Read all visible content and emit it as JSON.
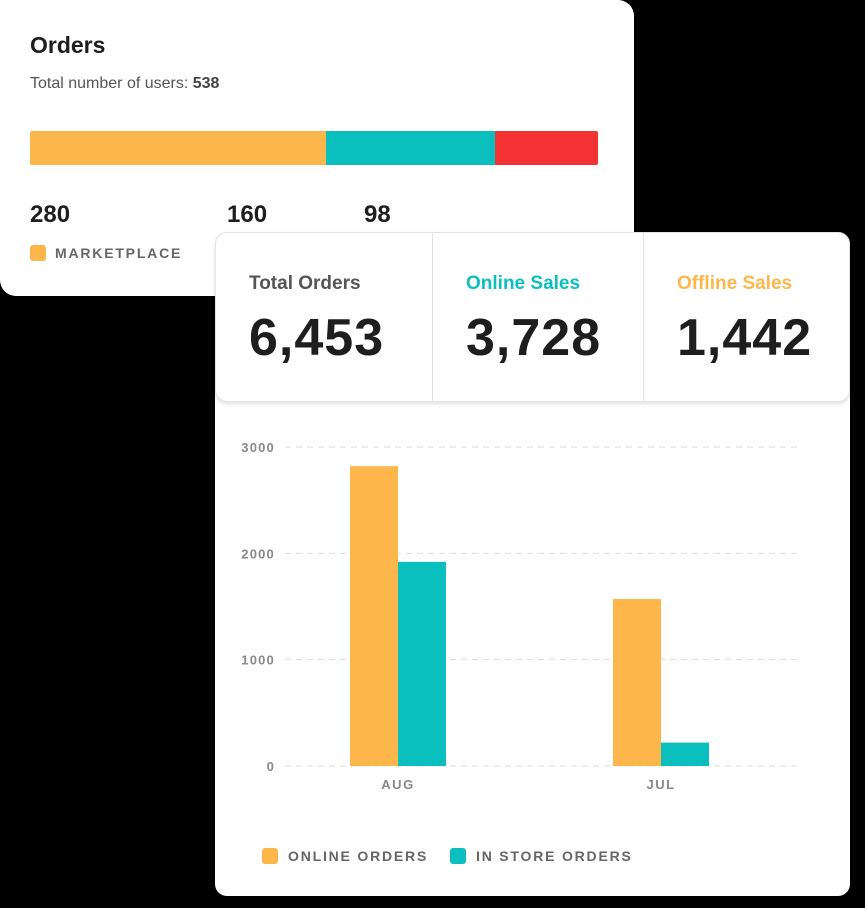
{
  "orders": {
    "title": "Orders",
    "subtitle_prefix": "Total number of users:",
    "subtitle_total": "538",
    "segments": [
      {
        "label": "MARKETPLACE",
        "value": 280,
        "display": "280",
        "color": "#FDB64A"
      },
      {
        "label": "",
        "value": 160,
        "display": "160",
        "color": "#0BBFBF"
      },
      {
        "label": "",
        "value": 98,
        "display": "98",
        "color": "#F53335"
      }
    ]
  },
  "metrics": {
    "total": {
      "label": "Total Orders",
      "value": "6,453",
      "color": "#555555"
    },
    "online": {
      "label": "Online Sales",
      "value": "3,728",
      "color": "#0BBFBF"
    },
    "offline": {
      "label": "Offline Sales",
      "value": "1,442",
      "color": "#FDB64A"
    }
  },
  "chart_data": {
    "type": "bar",
    "categories": [
      "AUG",
      "JUL"
    ],
    "series": [
      {
        "name": "ONLINE ORDERS",
        "values": [
          2820,
          1570
        ],
        "color": "#FDB64A"
      },
      {
        "name": "IN STORE ORDERS",
        "values": [
          1920,
          220
        ],
        "color": "#0BBFBF"
      }
    ],
    "yticks": [
      "0",
      "1000",
      "2000",
      "3000"
    ],
    "ylim": [
      0,
      3000
    ],
    "grid": true,
    "legend": "bottom-left"
  }
}
